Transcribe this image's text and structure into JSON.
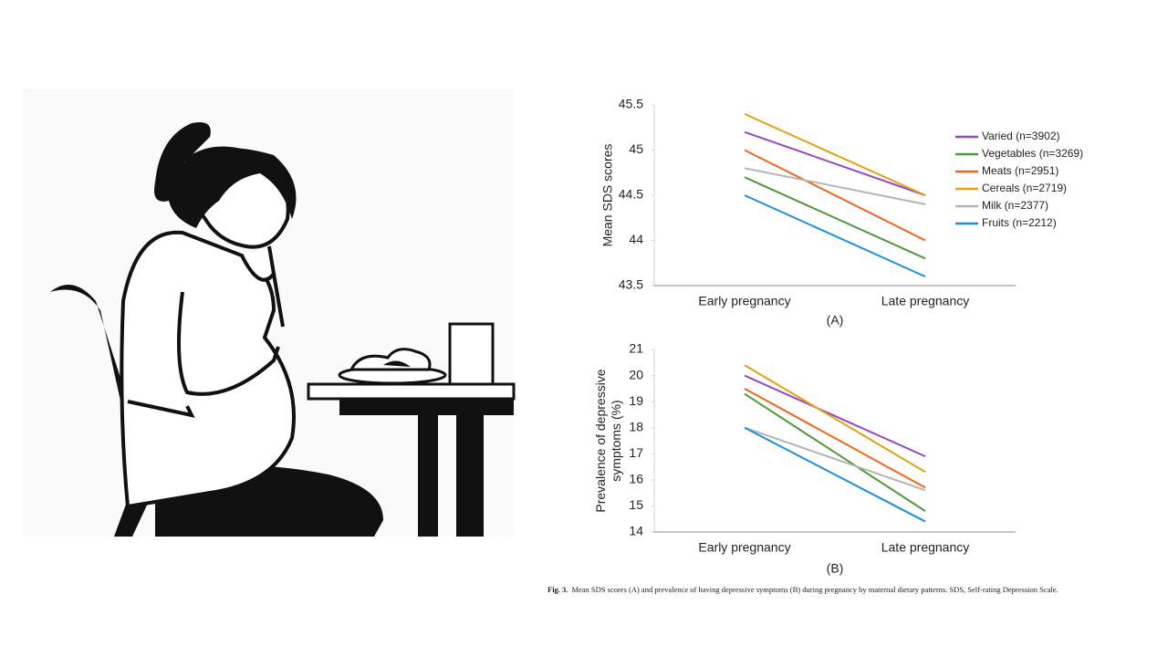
{
  "chart_data": [
    {
      "type": "line",
      "ylabel": [
        "Mean SDS scores"
      ],
      "annotation": "(A)",
      "categories": [
        "Early pregnancy",
        "Late pregnancy"
      ],
      "ylim": [
        43.5,
        45.5
      ],
      "yticks": [
        43.5,
        44,
        44.5,
        45,
        45.5
      ],
      "legend": "right",
      "series": [
        {
          "name": "Varied (n=3902)",
          "color": "#9447c0",
          "values": [
            45.2,
            44.5
          ]
        },
        {
          "name": "Vegetables (n=3269)",
          "color": "#4d9a36",
          "values": [
            44.7,
            43.8
          ]
        },
        {
          "name": "Meats (n=2951)",
          "color": "#f0661c",
          "values": [
            45.0,
            44.0
          ]
        },
        {
          "name": "Cereals (n=2719)",
          "color": "#e3a20e",
          "values": [
            45.4,
            44.5
          ]
        },
        {
          "name": "Milk (n=2377)",
          "color": "#b4b4b4",
          "values": [
            44.8,
            44.4
          ]
        },
        {
          "name": "Fruits (n=2212)",
          "color": "#1e8fd8",
          "values": [
            44.5,
            43.6
          ]
        }
      ]
    },
    {
      "type": "line",
      "ylabel": [
        "Prevalence of depressive",
        "symptoms (%)"
      ],
      "annotation": "(B)",
      "categories": [
        "Early pregnancy",
        "Late pregnancy"
      ],
      "ylim": [
        14,
        21
      ],
      "yticks": [
        14,
        15,
        16,
        17,
        18,
        19,
        20,
        21
      ],
      "series": [
        {
          "color": "#9447c0",
          "values": [
            20.0,
            16.9
          ]
        },
        {
          "color": "#4d9a36",
          "values": [
            19.3,
            14.8
          ]
        },
        {
          "color": "#f0661c",
          "values": [
            19.5,
            15.7
          ]
        },
        {
          "color": "#e3a20e",
          "values": [
            20.4,
            16.3
          ]
        },
        {
          "color": "#b4b4b4",
          "values": [
            18.0,
            15.6
          ]
        },
        {
          "color": "#1e8fd8",
          "values": [
            18.0,
            14.4
          ]
        }
      ]
    }
  ],
  "caption": {
    "label": "Fig. 3.",
    "text": "Mean SDS scores (A) and prevalence of having depressive symptoms (B) during pregnancy by maternal dietary patterns. SDS, Self-rating Depression Scale."
  }
}
